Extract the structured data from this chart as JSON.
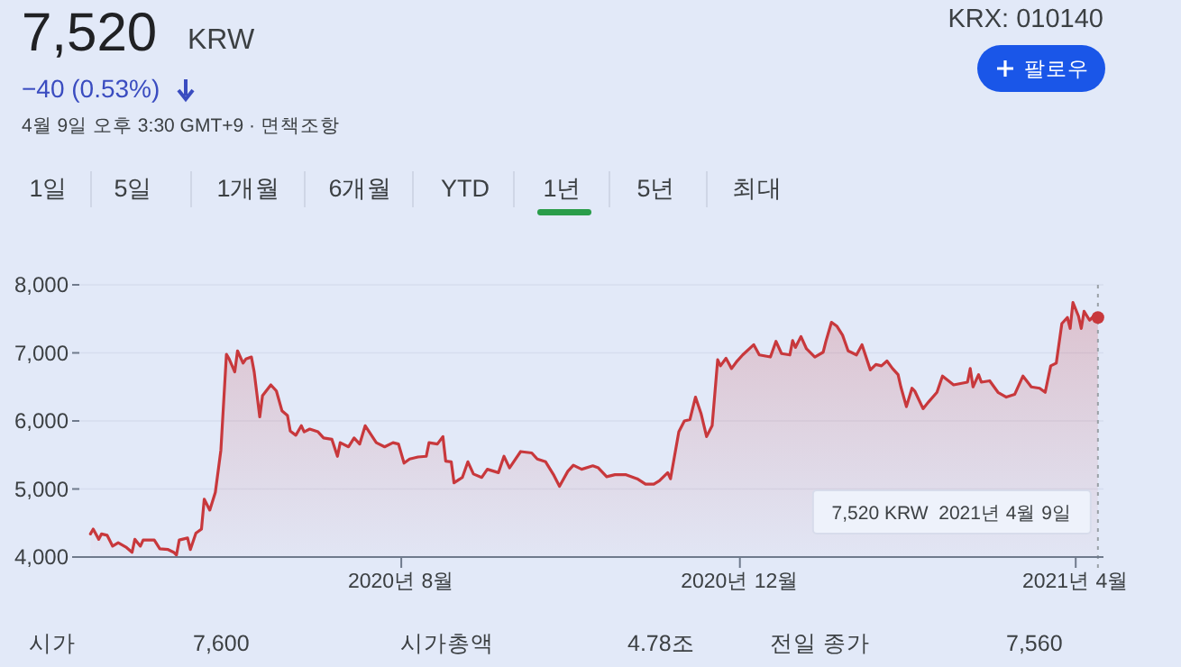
{
  "chart_data": {
    "type": "area",
    "xlim": [
      "2020-04-07",
      "2021-04-11"
    ],
    "ylim": [
      4000,
      8000
    ],
    "xticks": [
      {
        "value": "2020-08-01",
        "label": "2020년 8월"
      },
      {
        "value": "2020-12-01",
        "label": "2020년 12월"
      },
      {
        "value": "2021-04-01",
        "label": "2021년 4월"
      }
    ],
    "yticks": [
      {
        "value": 4000,
        "label": "4,000"
      },
      {
        "value": 5000,
        "label": "5,000"
      },
      {
        "value": 6000,
        "label": "6,000"
      },
      {
        "value": 7000,
        "label": "7,000"
      },
      {
        "value": 8000,
        "label": "8,000"
      }
    ],
    "grid": "y",
    "marker": "none",
    "line_style": "solid",
    "x": [
      "2020-04-11",
      "2020-04-12",
      "2020-04-14",
      "2020-04-15",
      "2020-04-17",
      "2020-04-19",
      "2020-04-21",
      "2020-04-24",
      "2020-04-26",
      "2020-04-27",
      "2020-04-29",
      "2020-04-30",
      "2020-05-04",
      "2020-05-06",
      "2020-05-09",
      "2020-05-11",
      "2020-05-12",
      "2020-05-13",
      "2020-05-16",
      "2020-05-17",
      "2020-05-19",
      "2020-05-21",
      "2020-05-22",
      "2020-05-24",
      "2020-05-26",
      "2020-05-28",
      "2020-05-30",
      "2020-05-31",
      "2020-06-02",
      "2020-06-03",
      "2020-06-05",
      "2020-06-06",
      "2020-06-08",
      "2020-06-09",
      "2020-06-11",
      "2020-06-12",
      "2020-06-15",
      "2020-06-17",
      "2020-06-19",
      "2020-06-21",
      "2020-06-22",
      "2020-06-24",
      "2020-06-26",
      "2020-06-27",
      "2020-06-29",
      "2020-07-02",
      "2020-07-04",
      "2020-07-07",
      "2020-07-09",
      "2020-07-10",
      "2020-07-13",
      "2020-07-15",
      "2020-07-17",
      "2020-07-19",
      "2020-07-23",
      "2020-07-26",
      "2020-07-29",
      "2020-07-31",
      "2020-08-02",
      "2020-08-04",
      "2020-08-07",
      "2020-08-10",
      "2020-08-11",
      "2020-08-14",
      "2020-08-16",
      "2020-08-17",
      "2020-08-19",
      "2020-08-20",
      "2020-08-23",
      "2020-08-25",
      "2020-08-27",
      "2020-08-30",
      "2020-09-01",
      "2020-09-05",
      "2020-09-07",
      "2020-09-09",
      "2020-09-13",
      "2020-09-17",
      "2020-09-19",
      "2020-09-22",
      "2020-09-25",
      "2020-09-27",
      "2020-09-30",
      "2020-10-02",
      "2020-10-05",
      "2020-10-09",
      "2020-10-11",
      "2020-10-14",
      "2020-10-17",
      "2020-10-21",
      "2020-10-25",
      "2020-10-28",
      "2020-10-31",
      "2020-11-02",
      "2020-11-05",
      "2020-11-06",
      "2020-11-09",
      "2020-11-11",
      "2020-11-13",
      "2020-11-15",
      "2020-11-17",
      "2020-11-19",
      "2020-11-21",
      "2020-11-23",
      "2020-11-24",
      "2020-11-26",
      "2020-11-28",
      "2020-11-30",
      "2020-12-02",
      "2020-12-06",
      "2020-12-08",
      "2020-12-12",
      "2020-12-14",
      "2020-12-16",
      "2020-12-19",
      "2020-12-20",
      "2020-12-21",
      "2020-12-23",
      "2020-12-25",
      "2020-12-28",
      "2020-12-31",
      "2021-01-01",
      "2021-01-03",
      "2021-01-05",
      "2021-01-07",
      "2021-01-09",
      "2021-01-12",
      "2021-01-14",
      "2021-01-17",
      "2021-01-19",
      "2021-01-21",
      "2021-01-23",
      "2021-01-25",
      "2021-01-27",
      "2021-01-28",
      "2021-01-30",
      "2021-02-01",
      "2021-02-02",
      "2021-02-05",
      "2021-02-07",
      "2021-02-10",
      "2021-02-12",
      "2021-02-16",
      "2021-02-21",
      "2021-02-22",
      "2021-02-23",
      "2021-02-25",
      "2021-02-26",
      "2021-03-01",
      "2021-03-04",
      "2021-03-07",
      "2021-03-10",
      "2021-03-13",
      "2021-03-16",
      "2021-03-19",
      "2021-03-21",
      "2021-03-23",
      "2021-03-25",
      "2021-03-27",
      "2021-03-29",
      "2021-03-30",
      "2021-03-31",
      "2021-04-02",
      "2021-04-03",
      "2021-04-04",
      "2021-04-06",
      "2021-04-07",
      "2021-04-09"
    ],
    "series": [
      {
        "color": "#c8383c",
        "values": [
          4340,
          4410,
          4260,
          4340,
          4320,
          4160,
          4210,
          4140,
          4070,
          4260,
          4160,
          4250,
          4250,
          4120,
          4110,
          4070,
          4030,
          4250,
          4280,
          4110,
          4350,
          4410,
          4850,
          4690,
          4950,
          5570,
          6980,
          6910,
          6720,
          7030,
          6850,
          6910,
          6940,
          6720,
          6060,
          6370,
          6530,
          6440,
          6150,
          6080,
          5850,
          5790,
          5930,
          5840,
          5880,
          5840,
          5750,
          5730,
          5480,
          5680,
          5620,
          5750,
          5660,
          5930,
          5680,
          5620,
          5680,
          5660,
          5380,
          5440,
          5470,
          5480,
          5680,
          5660,
          5770,
          5410,
          5400,
          5090,
          5170,
          5400,
          5220,
          5170,
          5290,
          5240,
          5480,
          5310,
          5550,
          5530,
          5440,
          5400,
          5200,
          5040,
          5260,
          5350,
          5290,
          5340,
          5310,
          5180,
          5210,
          5210,
          5150,
          5070,
          5070,
          5120,
          5240,
          5150,
          5840,
          6000,
          6020,
          6350,
          6110,
          5770,
          5930,
          6900,
          6810,
          6920,
          6770,
          6880,
          6970,
          7120,
          6970,
          6940,
          7170,
          6990,
          6970,
          7180,
          7080,
          7240,
          7060,
          6940,
          7010,
          7170,
          7450,
          7390,
          7260,
          7030,
          6970,
          7120,
          6750,
          6830,
          6810,
          6880,
          6770,
          6680,
          6500,
          6210,
          6480,
          6440,
          6180,
          6280,
          6420,
          6660,
          6530,
          6570,
          6770,
          6500,
          6680,
          6570,
          6590,
          6420,
          6350,
          6390,
          6660,
          6500,
          6480,
          6420,
          6810,
          6850,
          7430,
          7520,
          7360,
          7740,
          7540,
          7360,
          7610,
          7480,
          7520,
          7520
        ]
      }
    ],
    "ref_lines": [
      {
        "axis": "x",
        "value": "2021-04-09",
        "line_style": "dotted",
        "color": "#9aa0a6"
      }
    ],
    "annotations": [
      "7,520",
      "KRW",
      "−40 (0.53%)",
      "4월 9일 오후 3:30 GMT+9 · 면책조항",
      "KRX: 010140",
      "팔로우",
      "1일",
      "5일",
      "1개월",
      "6개월",
      "YTD",
      "1년",
      "5년",
      "최대",
      "시가",
      "7,600",
      "시가총액",
      "4.78조",
      "전일 종가",
      "7,560",
      "7,520 KRW  2021년 4월 9일"
    ]
  }
}
